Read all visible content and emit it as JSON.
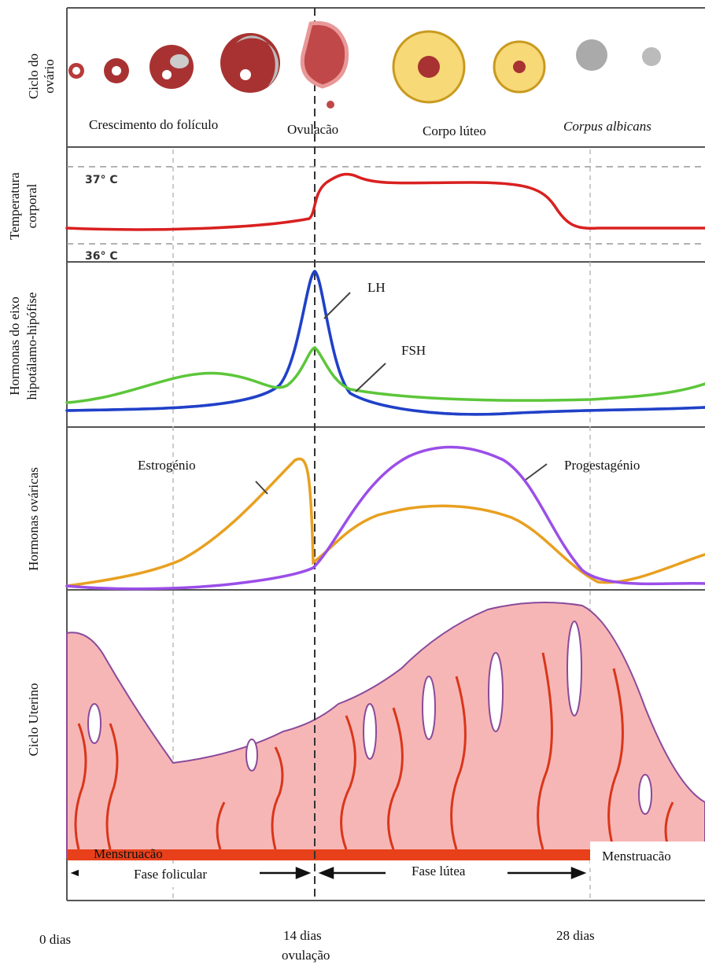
{
  "panels": [
    {
      "label": [
        "Ciclo do",
        "ovário"
      ]
    },
    {
      "label": [
        "Temperatura",
        "corporal"
      ]
    },
    {
      "label": [
        "Hormonas do eixo",
        "hipotálamo-hipófise"
      ]
    },
    {
      "label": [
        "Hormonas ováricas"
      ]
    },
    {
      "label": [
        "Ciclo Uterino"
      ]
    }
  ],
  "ovary_stages": [
    "Crescimento do folículo",
    "Ovulacão",
    "Corpo lúteo",
    "Corpus albicans"
  ],
  "temperature_labels": [
    "37° C",
    "36° C"
  ],
  "pituitary_hormones": [
    "LH",
    "FSH"
  ],
  "ovarian_hormones": [
    "Estrogénio",
    "Progestagénio"
  ],
  "menstruation_labels": [
    "Menstruacão",
    "Menstruacão"
  ],
  "phases": [
    "Fase folicular",
    "Fase lútea"
  ],
  "timeline": [
    "0 dias",
    "14 dias",
    "ovulação",
    "28 dias"
  ]
}
